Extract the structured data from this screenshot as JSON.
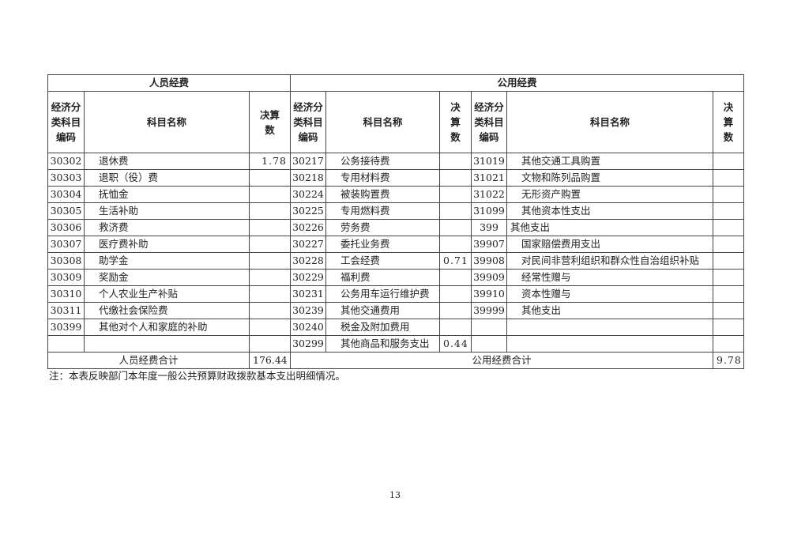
{
  "headers": {
    "personnel": "人员经费",
    "public": "公用经费",
    "code": "经济分类科目编码",
    "name": "科目名称",
    "amount": "决算数"
  },
  "rows": [
    {
      "c1": "30302",
      "n1": "退休费",
      "v1": "1.78",
      "c2": "30217",
      "n2": "公务接待费",
      "v2": "",
      "c3": "31019",
      "n3": "其他交通工具购置",
      "v3": "",
      "i3": true
    },
    {
      "c1": "30303",
      "n1": "退职（役）费",
      "v1": "",
      "c2": "30218",
      "n2": "专用材料费",
      "v2": "",
      "c3": "31021",
      "n3": "文物和陈列品购置",
      "v3": "",
      "i3": true
    },
    {
      "c1": "30304",
      "n1": "抚恤金",
      "v1": "",
      "c2": "30224",
      "n2": "被装购置费",
      "v2": "",
      "c3": "31022",
      "n3": "无形资产购置",
      "v3": "",
      "i3": true
    },
    {
      "c1": "30305",
      "n1": "生活补助",
      "v1": "",
      "c2": "30225",
      "n2": "专用燃料费",
      "v2": "",
      "c3": "31099",
      "n3": "其他资本性支出",
      "v3": "",
      "i3": true
    },
    {
      "c1": "30306",
      "n1": "救济费",
      "v1": "",
      "c2": "30226",
      "n2": "劳务费",
      "v2": "",
      "c3": "399",
      "n3": "其他支出",
      "v3": "",
      "i3": false
    },
    {
      "c1": "30307",
      "n1": "医疗费补助",
      "v1": "",
      "c2": "30227",
      "n2": "委托业务费",
      "v2": "",
      "c3": "39907",
      "n3": "国家赔偿费用支出",
      "v3": "",
      "i3": true
    },
    {
      "c1": "30308",
      "n1": "助学金",
      "v1": "",
      "c2": "30228",
      "n2": "工会经费",
      "v2": "0.71",
      "c3": "39908",
      "n3": "对民间非营利组织和群众性自治组织补贴",
      "v3": "",
      "i3": true
    },
    {
      "c1": "30309",
      "n1": "奖励金",
      "v1": "",
      "c2": "30229",
      "n2": "福利费",
      "v2": "",
      "c3": "39909",
      "n3": "经常性赠与",
      "v3": "",
      "i3": true
    },
    {
      "c1": "30310",
      "n1": "个人农业生产补贴",
      "v1": "",
      "c2": "30231",
      "n2": "公务用车运行维护费",
      "v2": "",
      "c3": "39910",
      "n3": "资本性赠与",
      "v3": "",
      "i3": true
    },
    {
      "c1": "30311",
      "n1": "代缴社会保险费",
      "v1": "",
      "c2": "30239",
      "n2": "其他交通费用",
      "v2": "",
      "c3": "39999",
      "n3": "其他支出",
      "v3": "",
      "i3": true
    },
    {
      "c1": "30399",
      "n1": "其他对个人和家庭的补助",
      "v1": "",
      "c2": "30240",
      "n2": "税金及附加费用",
      "v2": "",
      "c3": "",
      "n3": "",
      "v3": "",
      "i3": true
    },
    {
      "c1": "",
      "n1": "",
      "v1": "",
      "c2": "30299",
      "n2": "其他商品和服务支出",
      "v2": "0.44",
      "c3": "",
      "n3": "",
      "v3": "",
      "i3": true
    }
  ],
  "totals": {
    "personnel_label": "人员经费合计",
    "personnel_value": "176.44",
    "public_label": "公用经费合计",
    "public_value": "9.78"
  },
  "note": "注：本表反映部门本年度一般公共预算财政拨款基本支出明细情况。",
  "page_number": "13"
}
